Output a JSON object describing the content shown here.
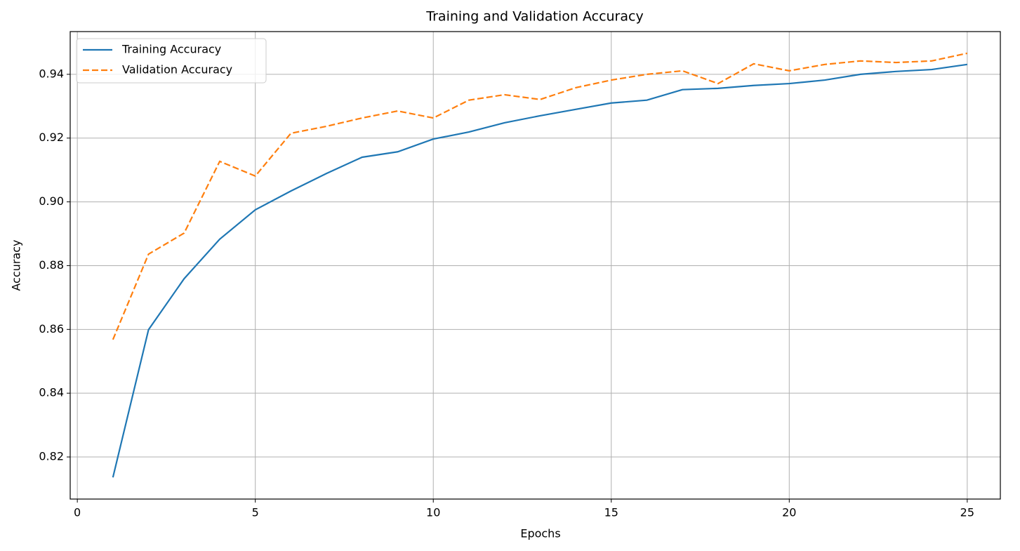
{
  "chart_data": {
    "type": "line",
    "title": "Training and Validation Accuracy",
    "x_label": "Epochs",
    "y_label": "Accuracy",
    "x": [
      1,
      2,
      3,
      4,
      5,
      6,
      7,
      8,
      9,
      10,
      11,
      12,
      13,
      14,
      15,
      16,
      17,
      18,
      19,
      20,
      21,
      22,
      23,
      24,
      25
    ],
    "series": [
      {
        "name": "Training Accuracy",
        "color": "#1f77b4",
        "linestyle": "solid",
        "values": [
          0.8136,
          0.8599,
          0.8759,
          0.8883,
          0.8975,
          0.9034,
          0.9089,
          0.914,
          0.9157,
          0.9197,
          0.9219,
          0.9248,
          0.927,
          0.929,
          0.931,
          0.9319,
          0.9352,
          0.9356,
          0.9365,
          0.9371,
          0.9382,
          0.94,
          0.9409,
          0.9415,
          0.9431
        ]
      },
      {
        "name": "Validation Accuracy",
        "color": "#ff7f0e",
        "linestyle": "dashed",
        "values": [
          0.8568,
          0.8836,
          0.8902,
          0.9127,
          0.9081,
          0.9215,
          0.9237,
          0.9263,
          0.9285,
          0.9263,
          0.9319,
          0.9336,
          0.9321,
          0.9358,
          0.9382,
          0.94,
          0.9411,
          0.9371,
          0.9433,
          0.9411,
          0.9431,
          0.9442,
          0.9437,
          0.9442,
          0.9466
        ]
      }
    ],
    "xlim": [
      -0.2,
      25.93
    ],
    "xticks": [
      0,
      5,
      10,
      15,
      20,
      25
    ],
    "ylim": [
      0.8068,
      0.9534
    ],
    "yticks": [
      0.82,
      0.84,
      0.86,
      0.88,
      {
        "value": 0.9,
        "label": "0.90"
      },
      0.92,
      0.94
    ],
    "grid": true,
    "legend": "upper left"
  }
}
